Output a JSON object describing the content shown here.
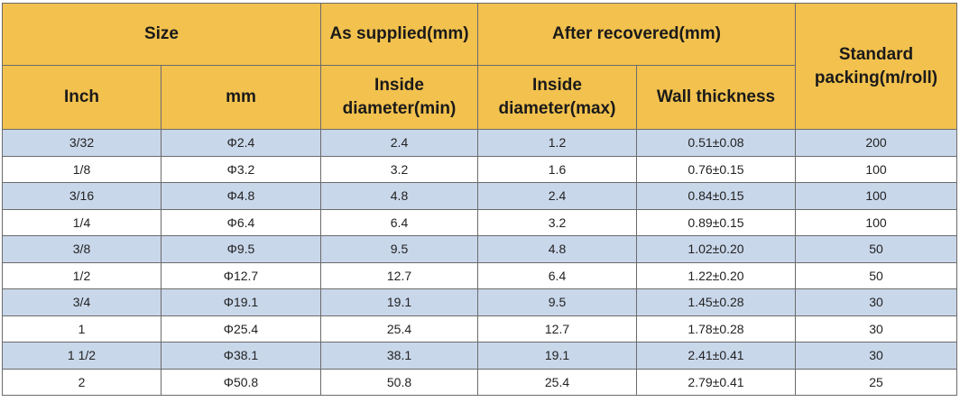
{
  "table": {
    "header_top": {
      "size": "Size",
      "as_supplied": "As supplied(mm)",
      "after_recovered": "After recovered(mm)",
      "standard_packing": "Standard packing(m/roll)"
    },
    "header_sub": {
      "inch": "Inch",
      "mm": "mm",
      "inside_diameter_min": "Inside diameter(min)",
      "inside_diameter_max": "Inside diameter(max)",
      "wall_thickness": "Wall thickness"
    },
    "rows": [
      [
        "3/32",
        "Φ2.4",
        "2.4",
        "1.2",
        "0.51±0.08",
        "200"
      ],
      [
        "1/8",
        "Φ3.2",
        "3.2",
        "1.6",
        "0.76±0.15",
        "100"
      ],
      [
        "3/16",
        "Φ4.8",
        "4.8",
        "2.4",
        "0.84±0.15",
        "100"
      ],
      [
        "1/4",
        "Φ6.4",
        "6.4",
        "3.2",
        "0.89±0.15",
        "100"
      ],
      [
        "3/8",
        "Φ9.5",
        "9.5",
        "4.8",
        "1.02±0.20",
        "50"
      ],
      [
        "1/2",
        "Φ12.7",
        "12.7",
        "6.4",
        "1.22±0.20",
        "50"
      ],
      [
        "3/4",
        "Φ19.1",
        "19.1",
        "9.5",
        "1.45±0.28",
        "30"
      ],
      [
        "1",
        "Φ25.4",
        "25.4",
        "12.7",
        "1.78±0.28",
        "30"
      ],
      [
        "1 1/2",
        "Φ38.1",
        "38.1",
        "19.1",
        "2.41±0.41",
        "30"
      ],
      [
        "2",
        "Φ50.8",
        "50.8",
        "25.4",
        "2.79±0.41",
        "25"
      ]
    ],
    "colors": {
      "header_bg": "#f2c14e",
      "stripe_bg": "#c9d7ea",
      "plain_bg": "#ffffff",
      "border": "#6b6b6b"
    }
  }
}
